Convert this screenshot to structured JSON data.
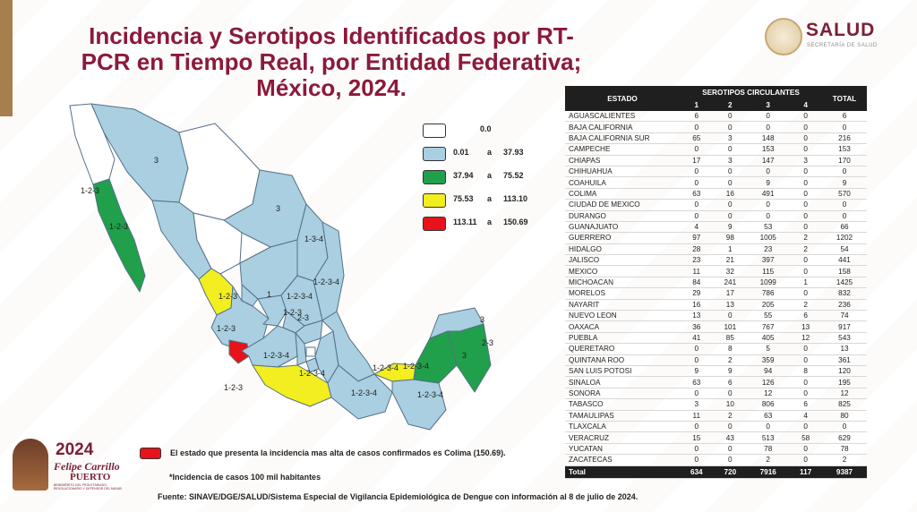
{
  "header": {
    "title_line1": "Incidencia y Serotipos Identificados por RT-",
    "title_line2": "PCR en Tiempo Real, por Entidad Federativa;",
    "title_line3": "México, 2024.",
    "logo_text": "SALUD",
    "logo_subtext": "SECRETARÍA DE SALUD"
  },
  "legend": [
    {
      "from": "",
      "sep": "",
      "to": "0.0",
      "color": "#ffffff"
    },
    {
      "from": "0.01",
      "sep": "a",
      "to": "37.93",
      "color": "#a9cfe0"
    },
    {
      "from": "37.94",
      "sep": "a",
      "to": "75.52",
      "color": "#20a04a"
    },
    {
      "from": "75.53",
      "sep": "a",
      "to": "113.10",
      "color": "#f2ee1f"
    },
    {
      "from": "113.11",
      "sep": "a",
      "to": "150.69",
      "color": "#e8131a"
    }
  ],
  "map_labels": [
    "3",
    "1-2-3",
    "1-2-3",
    "3",
    "1-3-4",
    "1-2-3-4",
    "1-2-3-4",
    "1-2-3",
    "1",
    "2-3",
    "1-2-3",
    "1-2-3",
    "1-2-3-4",
    "1-2-3-4",
    "1-2-3-4",
    "1-2-3-4",
    "1-2-3-4",
    "1-2-3",
    "1-2-3-4",
    "3",
    "2-3",
    "3"
  ],
  "table": {
    "header_estado": "ESTADO",
    "header_serotipos": "SEROTIPOS CIRCULANTES",
    "header_total": "TOTAL",
    "sero_cols": [
      "1",
      "2",
      "3",
      "4"
    ],
    "rows": [
      [
        "AGUASCALIENTES",
        "6",
        "0",
        "0",
        "0",
        "6"
      ],
      [
        "BAJA CALIFORNIA",
        "0",
        "0",
        "0",
        "0",
        "0"
      ],
      [
        "BAJA CALIFORNIA SUR",
        "65",
        "3",
        "148",
        "0",
        "216"
      ],
      [
        "CAMPECHE",
        "0",
        "0",
        "153",
        "0",
        "153"
      ],
      [
        "CHIAPAS",
        "17",
        "3",
        "147",
        "3",
        "170"
      ],
      [
        "CHIHUAHUA",
        "0",
        "0",
        "0",
        "0",
        "0"
      ],
      [
        "COAHUILA",
        "0",
        "0",
        "9",
        "0",
        "9"
      ],
      [
        "COLIMA",
        "63",
        "16",
        "491",
        "0",
        "570"
      ],
      [
        "CIUDAD DE MEXICO",
        "0",
        "0",
        "0",
        "0",
        "0"
      ],
      [
        "DURANGO",
        "0",
        "0",
        "0",
        "0",
        "0"
      ],
      [
        "GUANAJUATO",
        "4",
        "9",
        "53",
        "0",
        "66"
      ],
      [
        "GUERRERO",
        "97",
        "98",
        "1005",
        "2",
        "1202"
      ],
      [
        "HIDALGO",
        "28",
        "1",
        "23",
        "2",
        "54"
      ],
      [
        "JALISCO",
        "23",
        "21",
        "397",
        "0",
        "441"
      ],
      [
        "MEXICO",
        "11",
        "32",
        "115",
        "0",
        "158"
      ],
      [
        "MICHOACAN",
        "84",
        "241",
        "1099",
        "1",
        "1425"
      ],
      [
        "MORELOS",
        "29",
        "17",
        "786",
        "0",
        "832"
      ],
      [
        "NAYARIT",
        "16",
        "13",
        "205",
        "2",
        "236"
      ],
      [
        "NUEVO LEON",
        "13",
        "0",
        "55",
        "6",
        "74"
      ],
      [
        "OAXACA",
        "36",
        "101",
        "767",
        "13",
        "917"
      ],
      [
        "PUEBLA",
        "41",
        "85",
        "405",
        "12",
        "543"
      ],
      [
        "QUERETARO",
        "0",
        "8",
        "5",
        "0",
        "13"
      ],
      [
        "QUINTANA ROO",
        "0",
        "2",
        "359",
        "0",
        "361"
      ],
      [
        "SAN LUIS POTOSI",
        "9",
        "9",
        "94",
        "8",
        "120"
      ],
      [
        "SINALOA",
        "63",
        "6",
        "126",
        "0",
        "195"
      ],
      [
        "SONORA",
        "0",
        "0",
        "12",
        "0",
        "12"
      ],
      [
        "TABASCO",
        "3",
        "10",
        "806",
        "6",
        "825"
      ],
      [
        "TAMAULIPAS",
        "11",
        "2",
        "63",
        "4",
        "80"
      ],
      [
        "TLAXCALA",
        "0",
        "0",
        "0",
        "0",
        "0"
      ],
      [
        "VERACRUZ",
        "15",
        "43",
        "513",
        "58",
        "629"
      ],
      [
        "YUCATAN",
        "0",
        "0",
        "78",
        "0",
        "78"
      ],
      [
        "ZACATECAS",
        "0",
        "0",
        "2",
        "0",
        "2"
      ]
    ],
    "total_row": [
      "Total",
      "634",
      "720",
      "7916",
      "117",
      "9387"
    ]
  },
  "footer": {
    "highest_note": "El estado que presenta la incidencia mas alta de casos confirmados es Colima (150.69).",
    "incidence_note": "*Incidencia de casos 100 mil habitantes",
    "source": "Fuente: SINAVE/DGE/SALUD/Sistema Especial de Vigilancia Epidemiológica de Dengue con información al 8 de julio de 2024.",
    "logo_year": "2024",
    "logo_name1": "Felipe Carrillo",
    "logo_name2": "PUERTO",
    "logo_sub": "BENEMÉRITO DEL PROLETARIADO, REVOLUCIONARIO Y DEFENSOR DEL MAYAB"
  },
  "colors": {
    "title": "#8b1a3a",
    "light_blue": "#a9cfe0",
    "green": "#20a04a",
    "yellow": "#f2ee1f",
    "red": "#e8131a"
  }
}
